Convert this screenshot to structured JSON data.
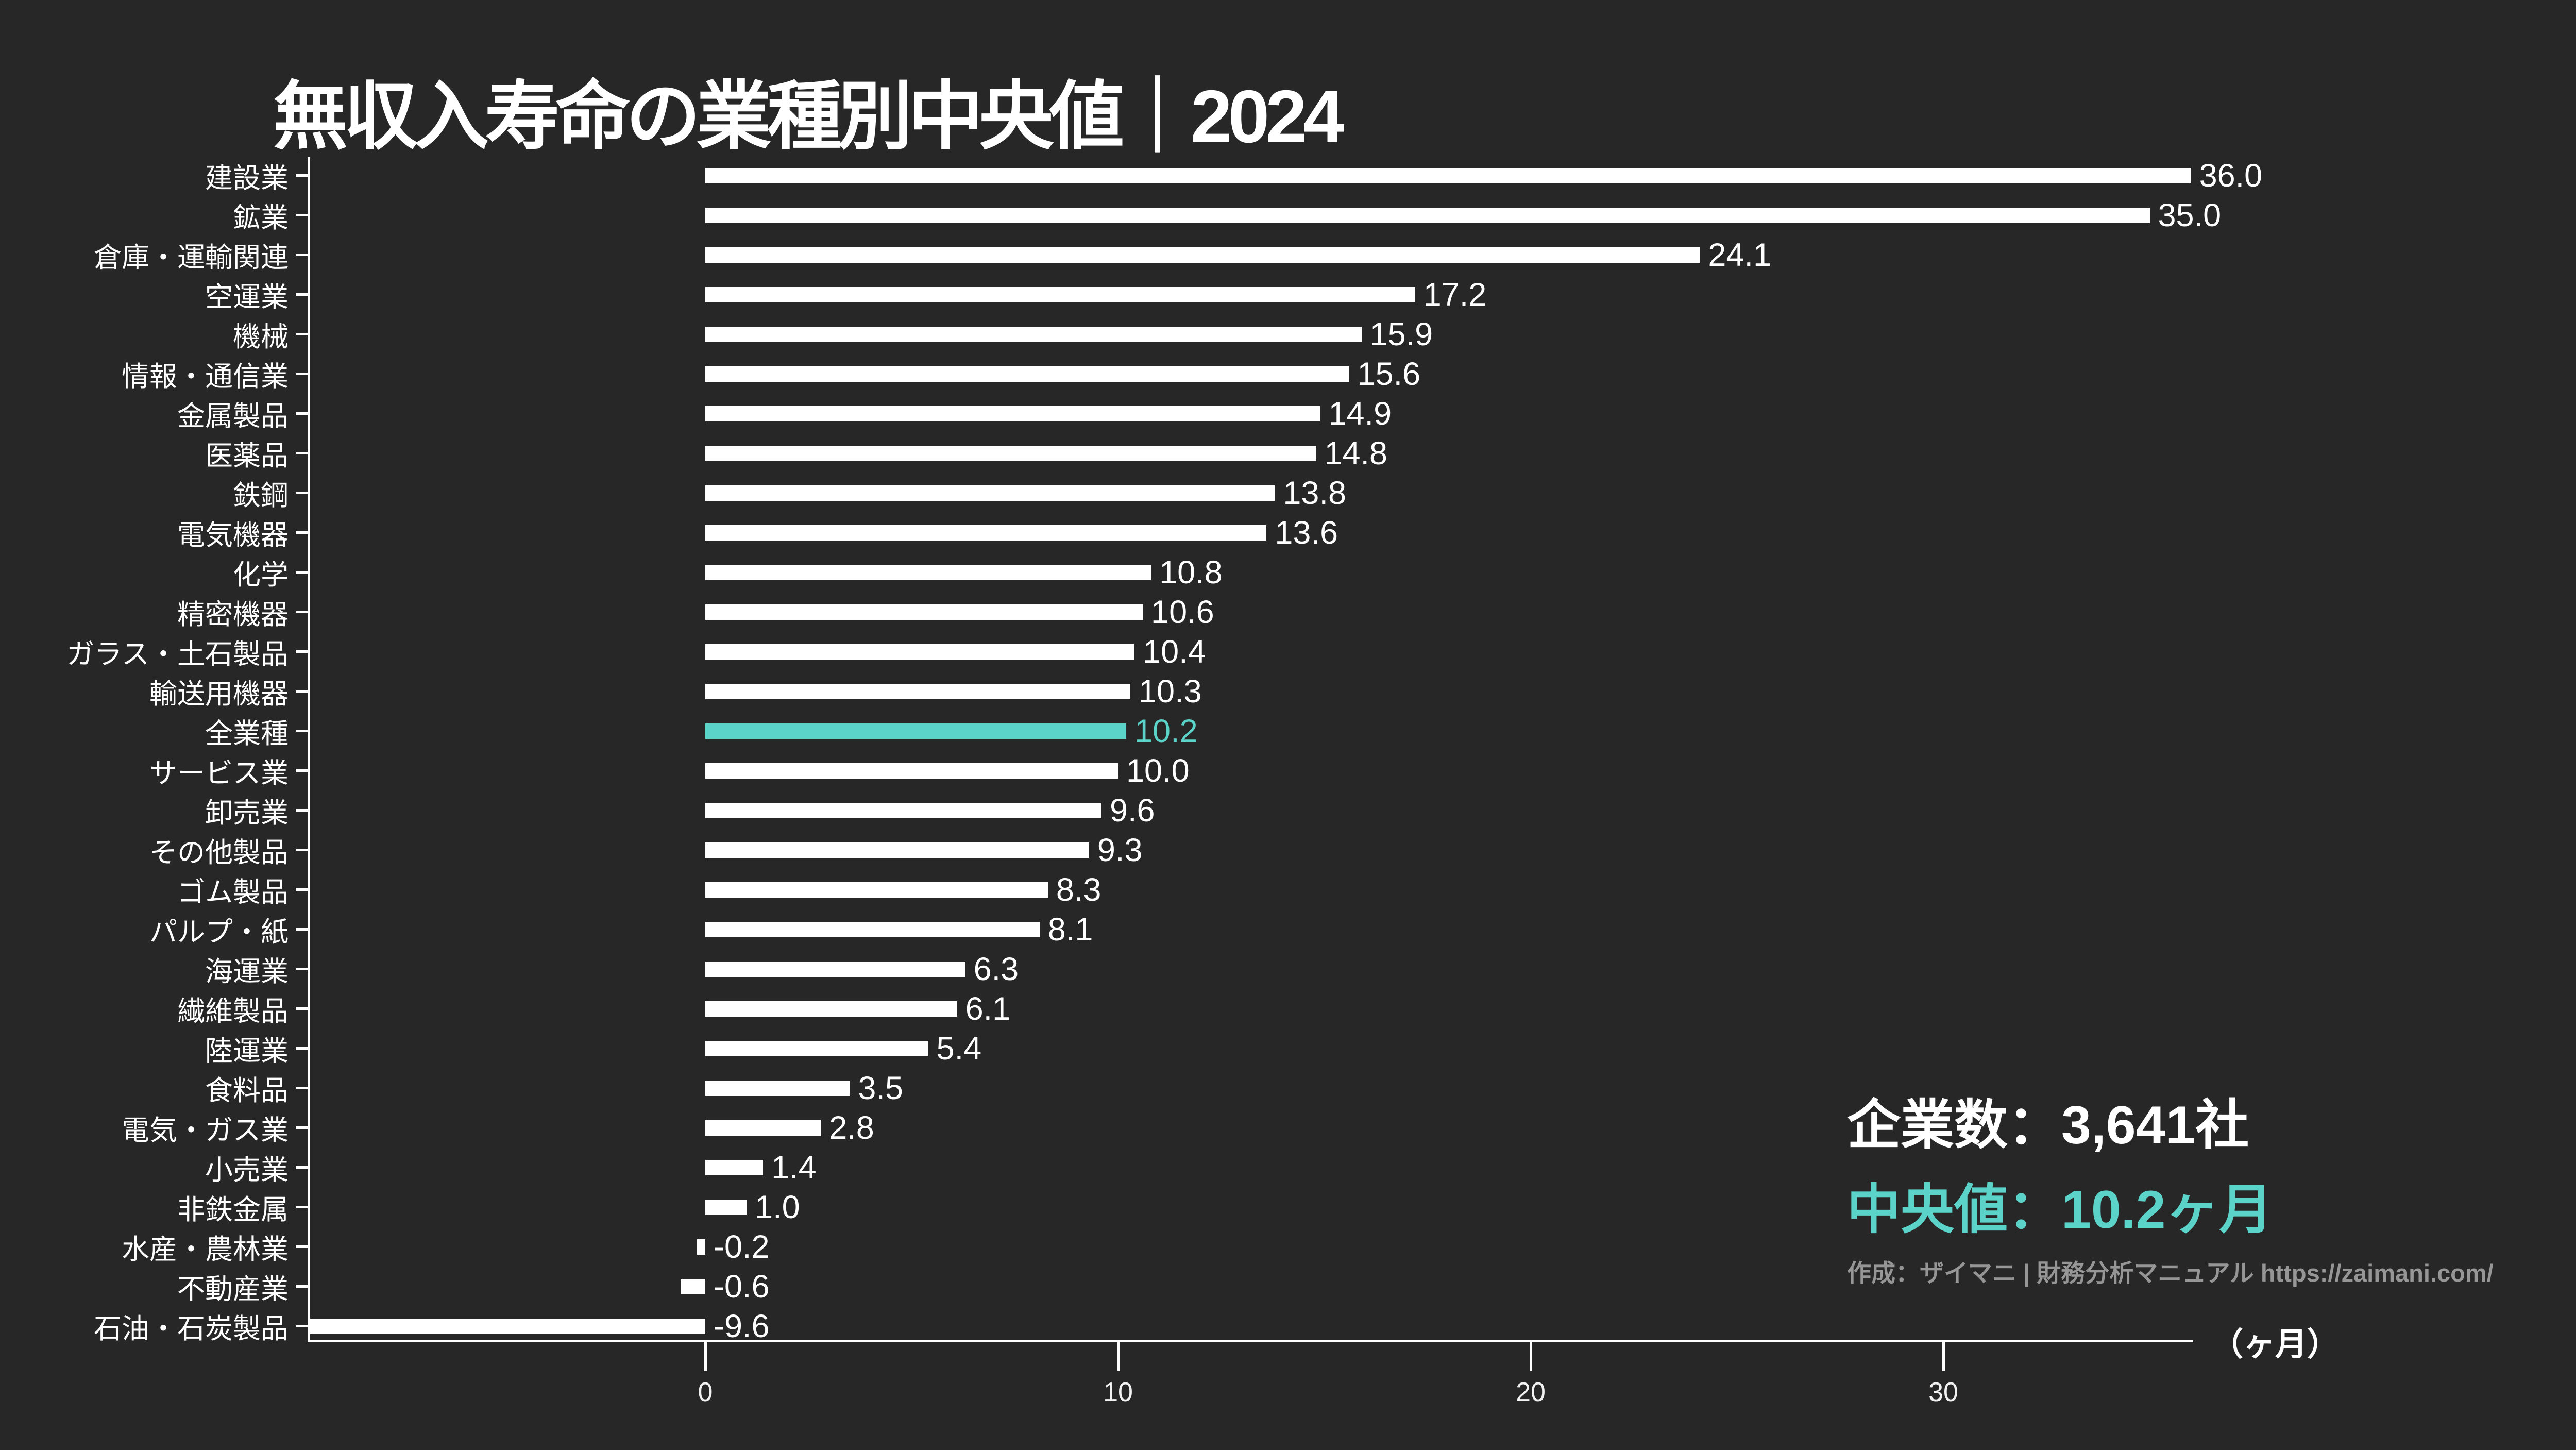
{
  "header": {
    "title": "無収入寿命の業種別中央値｜2024"
  },
  "colors": {
    "background": "#272727",
    "bar": "#ffffff",
    "highlight": "#5bd3c9",
    "text": "#ffffff",
    "muted_text": "#969696"
  },
  "chart_data": {
    "type": "bar",
    "orientation": "horizontal",
    "title": "無収入寿命の業種別中央値｜2024",
    "xlabel": "（ヶ月）",
    "ylabel": "",
    "xlim": [
      -9.6,
      36.0
    ],
    "grid": false,
    "legend": false,
    "x_ticks": [
      0,
      10,
      20,
      30
    ],
    "x_tick_labels": [
      "0",
      "10",
      "20",
      "30"
    ],
    "categories": [
      "建設業",
      "鉱業",
      "倉庫・運輸関連",
      "空運業",
      "機械",
      "情報・通信業",
      "金属製品",
      "医薬品",
      "鉄鋼",
      "電気機器",
      "化学",
      "精密機器",
      "ガラス・土石製品",
      "輸送用機器",
      "全業種",
      "サービス業",
      "卸売業",
      "その他製品",
      "ゴム製品",
      "パルプ・紙",
      "海運業",
      "繊維製品",
      "陸運業",
      "食料品",
      "電気・ガス業",
      "小売業",
      "非鉄金属",
      "水産・農林業",
      "不動産業",
      "石油・石炭製品"
    ],
    "values": [
      36.0,
      35.0,
      24.1,
      17.2,
      15.9,
      15.6,
      14.9,
      14.8,
      13.8,
      13.6,
      10.8,
      10.6,
      10.4,
      10.3,
      10.2,
      10.0,
      9.6,
      9.3,
      8.3,
      8.1,
      6.3,
      6.1,
      5.4,
      3.5,
      2.8,
      1.4,
      1.0,
      -0.2,
      -0.6,
      -9.6
    ],
    "value_labels": [
      "36.0",
      "35.0",
      "24.1",
      "17.2",
      "15.9",
      "15.6",
      "14.9",
      "14.8",
      "13.8",
      "13.6",
      "10.8",
      "10.6",
      "10.4",
      "10.3",
      "10.2",
      "10.0",
      "9.6",
      "9.3",
      "8.3",
      "8.1",
      "6.3",
      "6.1",
      "5.4",
      "3.5",
      "2.8",
      "1.4",
      "1.0",
      "-0.2",
      "-0.6",
      "-9.6"
    ],
    "highlight_category": "全業種",
    "highlight_index": 14
  },
  "stats": {
    "companies": "企業数：3,641社",
    "median": "中央値：10.2ヶ月",
    "credit": "作成：ザイマニ | 財務分析マニュアル https://zaimani.com/"
  }
}
